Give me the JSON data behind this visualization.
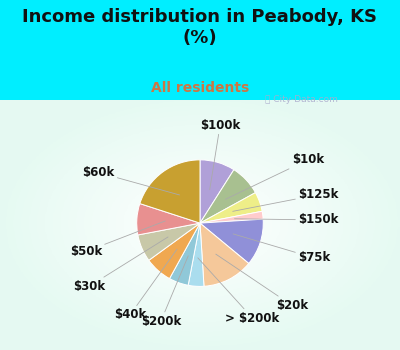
{
  "title": "Income distribution in Peabody, KS\n(%)",
  "subtitle": "All residents",
  "title_color": "#111111",
  "subtitle_color": "#cc7744",
  "bg_top": "#00eeff",
  "labels": [
    "$100k",
    "$10k",
    "$125k",
    "$150k",
    "$75k",
    "$20k",
    "> $200k",
    "$200k",
    "$40k",
    "$30k",
    "$50k",
    "$60k"
  ],
  "values": [
    9,
    8,
    5,
    2,
    12,
    13,
    4,
    5,
    7,
    7,
    8,
    20
  ],
  "colors": [
    "#b0a0d8",
    "#a8c090",
    "#eeee88",
    "#ffcccc",
    "#9090d8",
    "#f5c89a",
    "#aaddee",
    "#90c8d8",
    "#f0a850",
    "#c8c8a8",
    "#e89090",
    "#c8a030"
  ],
  "startangle": 90,
  "label_fs": 8.5
}
